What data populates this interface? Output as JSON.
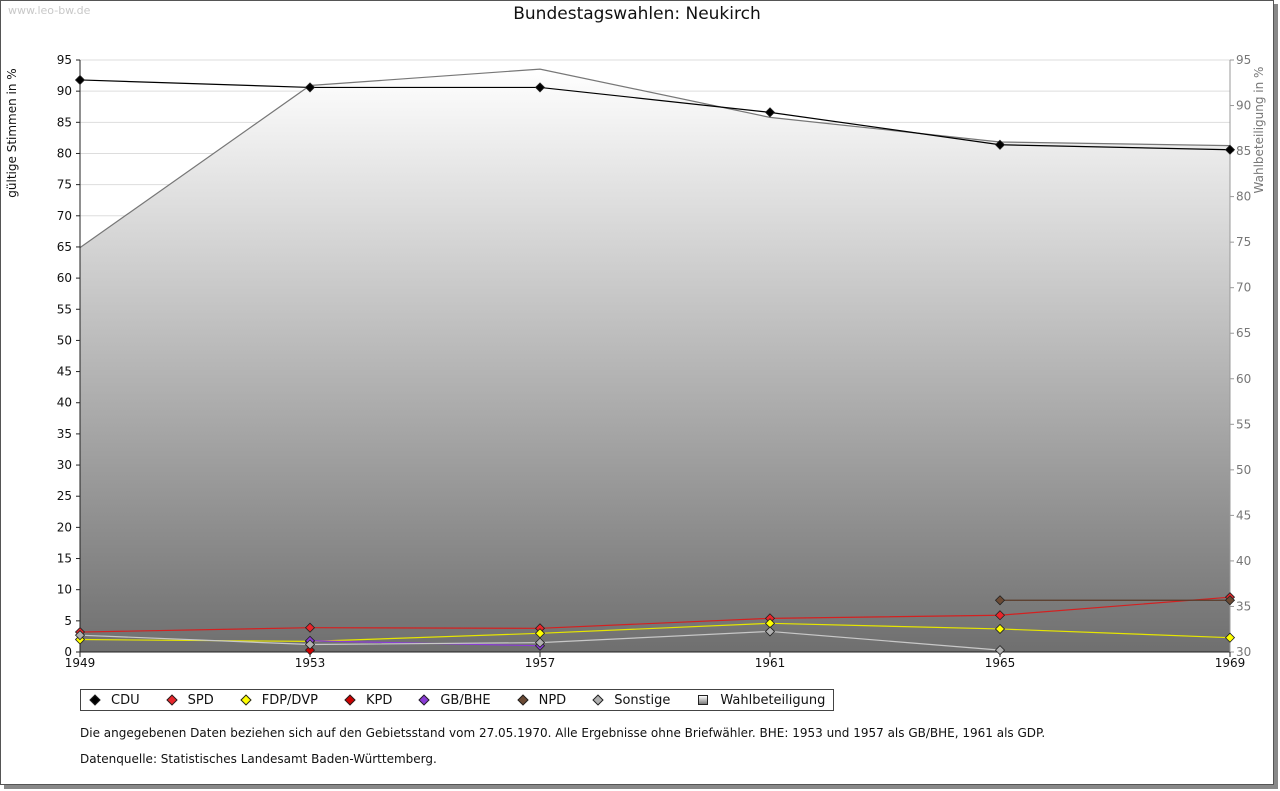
{
  "watermark": "www.leo-bw.de",
  "chart_data": {
    "type": "line",
    "title": "Bundestagswahlen: Neukirch",
    "ylabel": "gültige Stimmen in %",
    "y2label": "Wahlbeteiligung in %",
    "x": [
      1949,
      1953,
      1957,
      1961,
      1965,
      1969
    ],
    "ylim": [
      0,
      95
    ],
    "y2lim": [
      30,
      95
    ],
    "yticks": [
      0,
      5,
      10,
      15,
      20,
      25,
      30,
      35,
      40,
      45,
      50,
      55,
      60,
      65,
      70,
      75,
      80,
      85,
      90,
      95
    ],
    "y2ticks": [
      30,
      35,
      40,
      45,
      50,
      55,
      60,
      65,
      70,
      75,
      80,
      85,
      90,
      95
    ],
    "grid": true,
    "legend_position": "bottom",
    "series": [
      {
        "name": "CDU",
        "color": "#000000",
        "line": "#000000",
        "values": [
          91.8,
          90.6,
          90.6,
          86.6,
          81.4,
          80.6
        ]
      },
      {
        "name": "SPD",
        "color": "#e8262b",
        "line": "#d42020",
        "values": [
          3.2,
          3.9,
          3.8,
          5.4,
          5.9,
          8.8
        ]
      },
      {
        "name": "FDP/DVP",
        "color": "#ffff00",
        "line": "#e6e600",
        "values": [
          2.0,
          1.7,
          3.0,
          4.6,
          3.7,
          2.3
        ]
      },
      {
        "name": "KPD",
        "color": "#cc0000",
        "line": "#cc0000",
        "values": [
          null,
          0.3,
          null,
          null,
          null,
          null
        ]
      },
      {
        "name": "GB/BHE",
        "color": "#8a3bd6",
        "line": "#8a3bd6",
        "values": [
          null,
          1.8,
          1.0,
          null,
          null,
          null
        ]
      },
      {
        "name": "NPD",
        "color": "#6b4a34",
        "line": "#5a3a28",
        "values": [
          null,
          null,
          null,
          null,
          8.3,
          8.3
        ]
      },
      {
        "name": "Sonstige",
        "color": "#b0b0b0",
        "line": "#c8c8c8",
        "values": [
          2.7,
          1.2,
          1.5,
          3.3,
          0.3,
          null
        ]
      }
    ],
    "turnout": {
      "name": "Wahlbeteiligung",
      "values": [
        74.4,
        92.2,
        94.0,
        88.7,
        86.0,
        85.6
      ]
    }
  },
  "notes": {
    "line1": "Die angegebenen Daten beziehen sich auf den Gebietsstand vom 27.05.1970. Alle Ergebnisse ohne Briefwähler. BHE: 1953 und 1957 als GB/BHE, 1961 als GDP.",
    "line2": "Datenquelle: Statistisches Landesamt Baden-Württemberg."
  }
}
